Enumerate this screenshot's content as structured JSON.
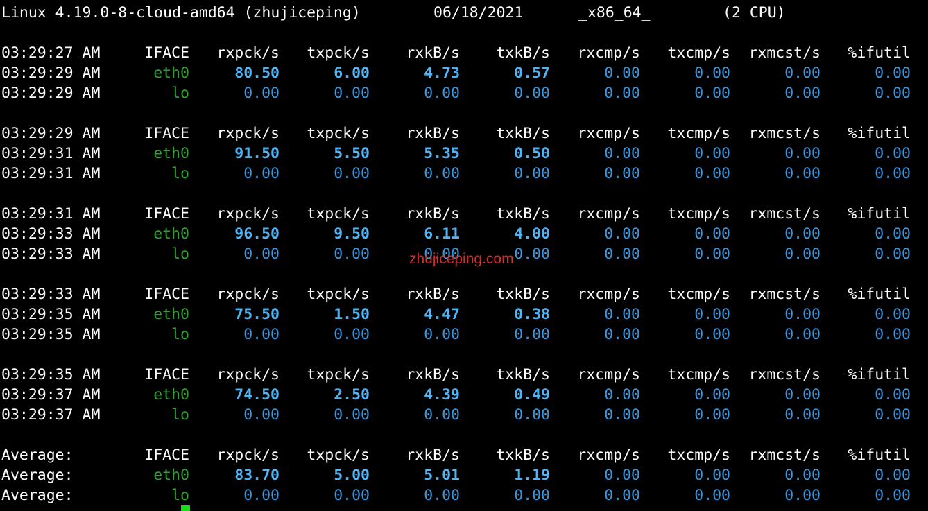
{
  "system_line": {
    "kernel": "Linux 4.19.0-8-cloud-amd64 (zhujiceping)",
    "date": "06/18/2021",
    "arch": "_x86_64_",
    "cpus": "(2 CPU)"
  },
  "headers": [
    "IFACE",
    "rxpck/s",
    "txpck/s",
    "rxkB/s",
    "txkB/s",
    "rxcmp/s",
    "txcmp/s",
    "rxmcst/s",
    "%ifutil"
  ],
  "blocks": [
    {
      "header_time": "03:29:27 AM",
      "rows": [
        {
          "time": "03:29:29 AM",
          "iface": "eth0",
          "values": [
            "80.50",
            "6.00",
            "4.73",
            "0.57",
            "0.00",
            "0.00",
            "0.00",
            "0.00"
          ]
        },
        {
          "time": "03:29:29 AM",
          "iface": "lo",
          "values": [
            "0.00",
            "0.00",
            "0.00",
            "0.00",
            "0.00",
            "0.00",
            "0.00",
            "0.00"
          ]
        }
      ]
    },
    {
      "header_time": "03:29:29 AM",
      "rows": [
        {
          "time": "03:29:31 AM",
          "iface": "eth0",
          "values": [
            "91.50",
            "5.50",
            "5.35",
            "0.50",
            "0.00",
            "0.00",
            "0.00",
            "0.00"
          ]
        },
        {
          "time": "03:29:31 AM",
          "iface": "lo",
          "values": [
            "0.00",
            "0.00",
            "0.00",
            "0.00",
            "0.00",
            "0.00",
            "0.00",
            "0.00"
          ]
        }
      ]
    },
    {
      "header_time": "03:29:31 AM",
      "rows": [
        {
          "time": "03:29:33 AM",
          "iface": "eth0",
          "values": [
            "96.50",
            "9.50",
            "6.11",
            "4.00",
            "0.00",
            "0.00",
            "0.00",
            "0.00"
          ]
        },
        {
          "time": "03:29:33 AM",
          "iface": "lo",
          "values": [
            "0.00",
            "0.00",
            "0.00",
            "0.00",
            "0.00",
            "0.00",
            "0.00",
            "0.00"
          ]
        }
      ]
    },
    {
      "header_time": "03:29:33 AM",
      "rows": [
        {
          "time": "03:29:35 AM",
          "iface": "eth0",
          "values": [
            "75.50",
            "1.50",
            "4.47",
            "0.38",
            "0.00",
            "0.00",
            "0.00",
            "0.00"
          ]
        },
        {
          "time": "03:29:35 AM",
          "iface": "lo",
          "values": [
            "0.00",
            "0.00",
            "0.00",
            "0.00",
            "0.00",
            "0.00",
            "0.00",
            "0.00"
          ]
        }
      ]
    },
    {
      "header_time": "03:29:35 AM",
      "rows": [
        {
          "time": "03:29:37 AM",
          "iface": "eth0",
          "values": [
            "74.50",
            "2.50",
            "4.39",
            "0.49",
            "0.00",
            "0.00",
            "0.00",
            "0.00"
          ]
        },
        {
          "time": "03:29:37 AM",
          "iface": "lo",
          "values": [
            "0.00",
            "0.00",
            "0.00",
            "0.00",
            "0.00",
            "0.00",
            "0.00",
            "0.00"
          ]
        }
      ]
    },
    {
      "header_time": "Average:",
      "rows": [
        {
          "time": "Average:",
          "iface": "eth0",
          "values": [
            "83.70",
            "5.00",
            "5.01",
            "1.19",
            "0.00",
            "0.00",
            "0.00",
            "0.00"
          ]
        },
        {
          "time": "Average:",
          "iface": "lo",
          "values": [
            "0.00",
            "0.00",
            "0.00",
            "0.00",
            "0.00",
            "0.00",
            "0.00",
            "0.00"
          ]
        }
      ]
    }
  ],
  "watermark": "zhujiceping.com",
  "colors": {
    "background": "#000000",
    "text": "#ffffff",
    "iface": "#2aa52a",
    "bold_value": "#4fb4f5",
    "value": "#3a96dd",
    "watermark": "#e02a2a",
    "cursor": "#13e113"
  }
}
